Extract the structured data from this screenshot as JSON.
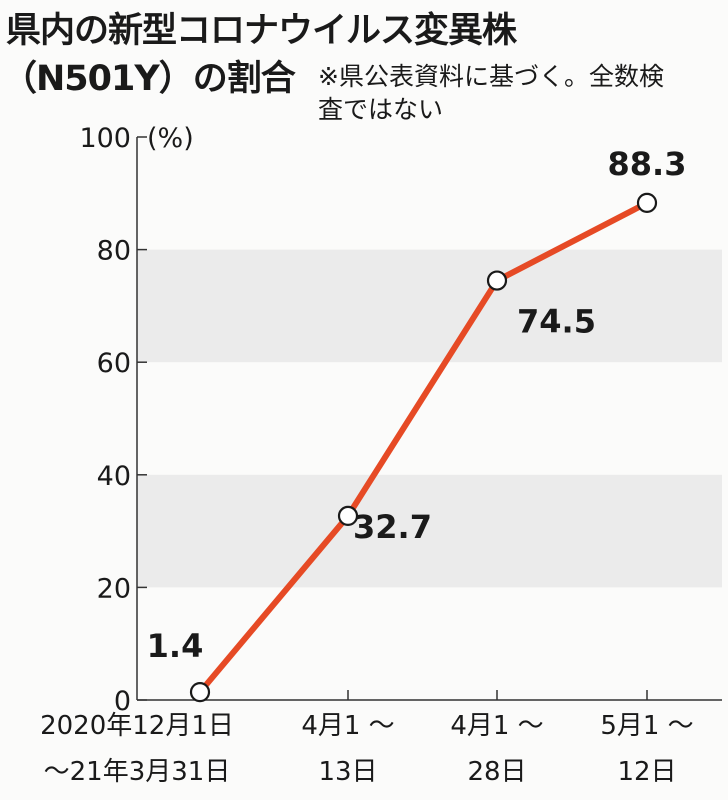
{
  "title_line1": "県内の新型コロナウイルス変異株",
  "title_line2": "（N501Y）の割合",
  "note": "※県公表資料に基づく。全数検査ではない",
  "chart_data": {
    "type": "line",
    "title": "県内の新型コロナウイルス変異株（N501Y）の割合",
    "ylabel": "(%)",
    "xlabel": "",
    "ylim": [
      0,
      100
    ],
    "yticks": [
      0,
      20,
      40,
      60,
      80,
      100
    ],
    "categories": [
      [
        "2020年12月1日",
        "～21年3月31日"
      ],
      [
        "4月1 ～",
        "13日"
      ],
      [
        "4月1 ～",
        "28日"
      ],
      [
        "5月1 ～",
        "12日"
      ]
    ],
    "series": [
      {
        "name": "N501Y割合",
        "values": [
          1.4,
          32.7,
          74.5,
          88.3
        ],
        "labels": [
          "1.4",
          "32.7",
          "74.5",
          "88.3"
        ]
      }
    ],
    "shaded_bands": [
      [
        20,
        40
      ],
      [
        60,
        80
      ]
    ],
    "colors": {
      "line": "#e64a25",
      "band": "#ebebeb",
      "axis": "#333333"
    }
  }
}
